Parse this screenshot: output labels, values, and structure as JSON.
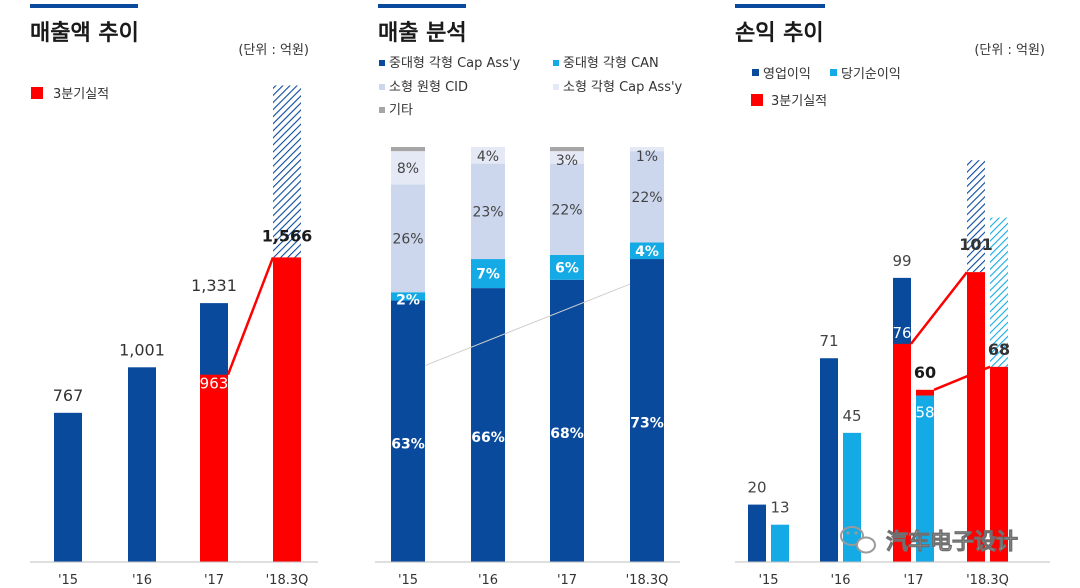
{
  "colors": {
    "dark_blue": "#0a4a9c",
    "cyan": "#14aae6",
    "light_blue": "#ccd7ee",
    "pale_blue": "#e4e9f5",
    "gray": "#a6a6a6",
    "red": "#ff0000",
    "accent_line": "#0a4a9c",
    "baseline": "#bfbfbf"
  },
  "watermark": {
    "text": "汽车电子设计",
    "icon": "wechat-icon"
  },
  "chart_data": [
    {
      "type": "bar",
      "title": "매출액 추이",
      "unit": "(단위 : 억원)",
      "legend": [
        {
          "name": "3분기실적",
          "color": "#ff0000"
        }
      ],
      "categories": [
        "'15",
        "'16",
        "'17",
        "'18.3Q"
      ],
      "series": [
        {
          "name": "",
          "values": [
            767,
            1001,
            1331,
            null
          ],
          "labels": [
            "767",
            "1,001",
            "1,331",
            ""
          ]
        },
        {
          "name": "3분기실적",
          "values": [
            null,
            null,
            963,
            1566
          ],
          "labels": [
            "",
            "",
            "963",
            "1,566"
          ]
        }
      ],
      "forecast_hatch": {
        "category": "'18.3Q",
        "top_value": 2450
      },
      "ylim": [
        0,
        2500
      ],
      "connector": {
        "from": "'17",
        "to": "'18.3Q",
        "series": "3분기실적"
      }
    },
    {
      "type": "bar",
      "stacked": true,
      "title": "매출 분석",
      "categories": [
        "'15",
        "'16",
        "'17",
        "'18.3Q"
      ],
      "series": [
        {
          "name": "중대형 각형 Cap Ass'y",
          "values": [
            63,
            66,
            68,
            73
          ]
        },
        {
          "name": "중대형 각형 CAN",
          "values": [
            2,
            7,
            6,
            4
          ]
        },
        {
          "name": "소형 원형 CID",
          "values": [
            26,
            23,
            22,
            22
          ]
        },
        {
          "name": "소형 각형 Cap Ass'y",
          "values": [
            8,
            4,
            3,
            1
          ]
        },
        {
          "name": "기타",
          "values": [
            1,
            0,
            1,
            0
          ]
        }
      ],
      "ylim": [
        0,
        100
      ],
      "connector": {
        "from": "'15",
        "to": "'18.3Q",
        "series": "중대형 각형 Cap Ass'y"
      }
    },
    {
      "type": "bar",
      "title": "손익 추이",
      "unit": "(단위 : 억원)",
      "legend": [
        {
          "name": "영업이익",
          "color": "#0a4a9c"
        },
        {
          "name": "당기순이익",
          "color": "#14aae6"
        },
        {
          "name": "3분기실적",
          "color": "#ff0000"
        }
      ],
      "categories": [
        "'15",
        "'16",
        "'17",
        "'18.3Q"
      ],
      "series": [
        {
          "name": "영업이익",
          "values": [
            20,
            71,
            99,
            null
          ],
          "labels": [
            "20",
            "71",
            "99",
            ""
          ]
        },
        {
          "name": "당기순이익",
          "values": [
            13,
            45,
            58,
            null
          ],
          "labels": [
            "13",
            "45",
            "58",
            ""
          ]
        },
        {
          "name": "3분기실적 영업이익",
          "values": [
            null,
            null,
            76,
            101
          ],
          "labels": [
            "",
            "",
            "76",
            "101"
          ]
        },
        {
          "name": "3분기실적 당기순이익",
          "values": [
            null,
            null,
            60,
            68
          ],
          "labels": [
            "",
            "",
            "60",
            "68"
          ]
        }
      ],
      "forecast_hatch": {
        "category": "'18.3Q",
        "operating_top": 140,
        "net_top": 120
      },
      "ylim": [
        0,
        140
      ]
    }
  ]
}
